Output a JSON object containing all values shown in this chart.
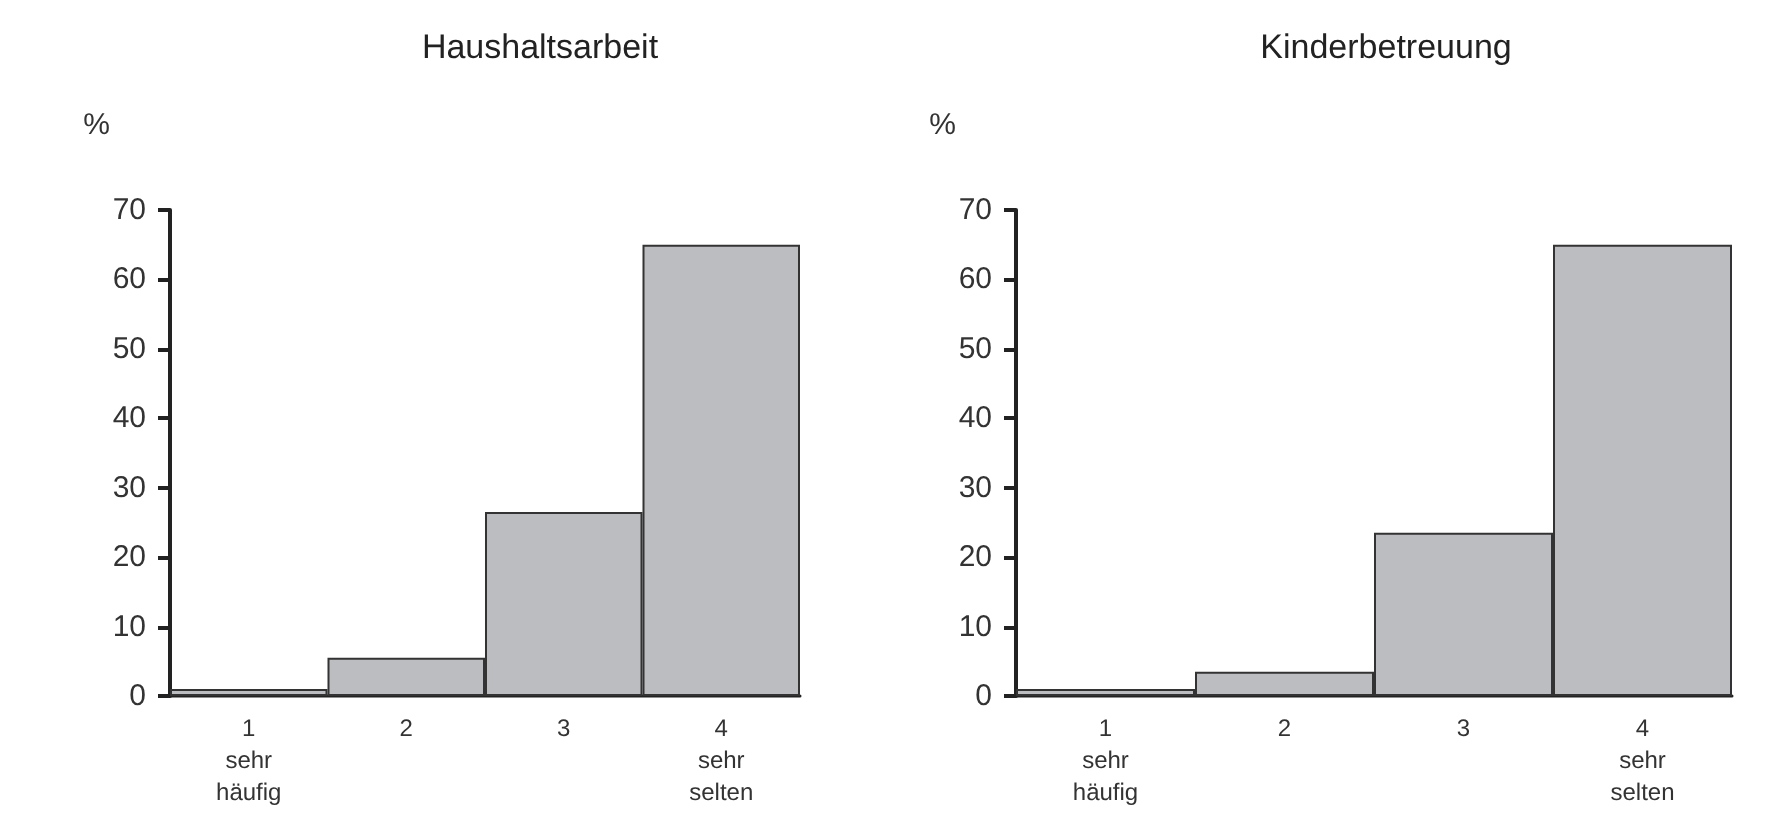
{
  "chart_data": [
    {
      "type": "bar",
      "title": "Haushaltsarbeit",
      "ylabel": "%",
      "categories": [
        "1\nsehr\nhäufig",
        "2",
        "3",
        "4\nsehr\nselten"
      ],
      "values": [
        1,
        5.5,
        26.5,
        65
      ],
      "color": "#bcbdc0",
      "ylim": [
        0,
        70
      ],
      "yticks": [
        0,
        10,
        20,
        30,
        40,
        50,
        60,
        70
      ],
      "grid": false
    },
    {
      "type": "bar",
      "title": "Kinderbetreuung",
      "ylabel": "%",
      "categories": [
        "1\nsehr\nhäufig",
        "2",
        "3",
        "4\nsehr\nselten"
      ],
      "values": [
        1,
        3.5,
        23.5,
        65
      ],
      "color": "#bcbdc0",
      "ylim": [
        0,
        70
      ],
      "yticks": [
        0,
        10,
        20,
        30,
        40,
        50,
        60,
        70
      ],
      "grid": false
    }
  ]
}
